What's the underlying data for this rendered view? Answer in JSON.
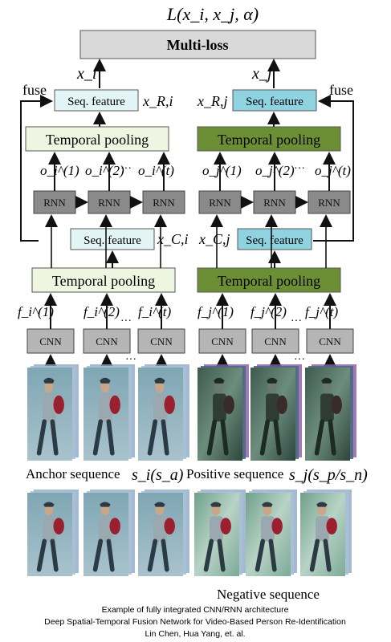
{
  "loss_formula": "L(x_i, x_j, α)",
  "multi_loss_label": "Multi-loss",
  "fuse_label": "fuse",
  "seq_feature_label": "Seq. feature",
  "temporal_pooling_label": "Temporal pooling",
  "rnn_label": "RNN",
  "cnn_label": "CNN",
  "ellipsis": "···",
  "anchor": {
    "top_output": "x_i",
    "seq_top_label": "x_R,i",
    "seq_mid_label": "x_C,i",
    "rnn_outputs": [
      "o_i^(1)",
      "o_i^(2)",
      "o_i^(t)"
    ],
    "cnn_features": [
      "f_i^(1)",
      "f_i^(2)",
      "f_i^(t)"
    ],
    "sequence_label": "Anchor sequence",
    "sequence_symbol": "s_i(s_a)"
  },
  "positive": {
    "top_output": "x_j",
    "seq_top_label": "x_R,j",
    "seq_mid_label": "x_C,j",
    "rnn_outputs": [
      "o_j^(1)",
      "o_j^(2)",
      "o_j^(t)"
    ],
    "cnn_features": [
      "f_j^(1)",
      "f_j^(2)",
      "f_j^(t)"
    ],
    "sequence_label": "Positive sequence",
    "sequence_symbol": "s_j(s_p/s_n)"
  },
  "negative_sequence_label": "Negative sequence",
  "caption": [
    "Example of fully integrated CNN/RNN architecture",
    "Deep Spatial-Temporal Fusion Network for Video-Based Person Re-Identification",
    "Lin Chen, Hua Yang, et. al."
  ],
  "colors": {
    "seq_left_fill": "#e3f4f6",
    "seq_right_fill": "#8fd3e0",
    "pool_left_fill": "#eef6e2",
    "pool_right_fill": "#6c8f36",
    "block_fill": "#8a8a8a",
    "multiloss_fill": "#d9d9d9"
  }
}
